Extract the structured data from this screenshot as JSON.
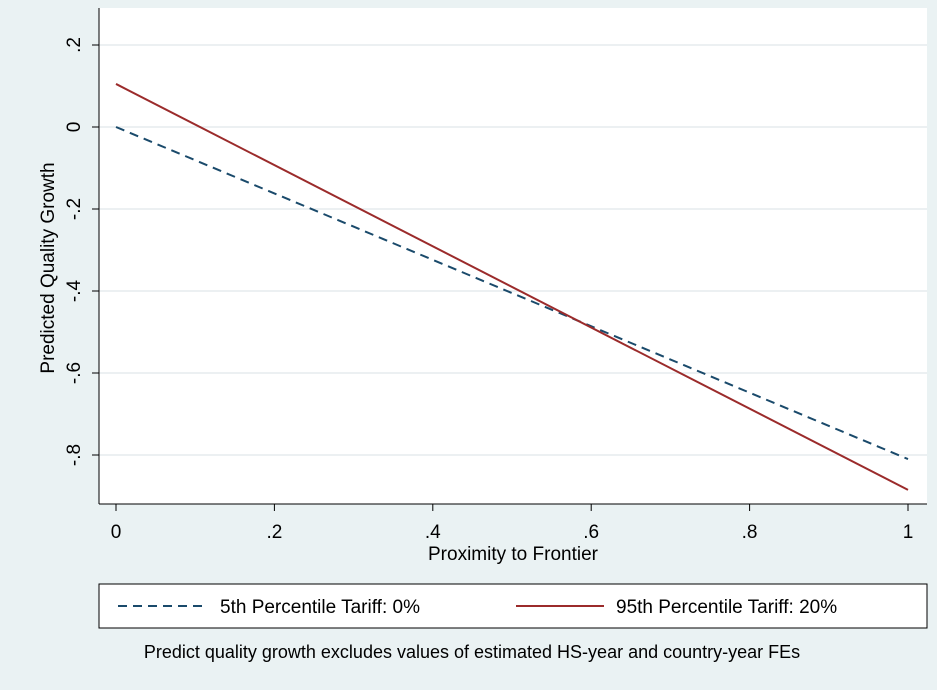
{
  "chart_data": {
    "type": "line",
    "title": "",
    "xlabel": "Proximity to Frontier",
    "ylabel": "Predicted Quality Growth",
    "xlim": [
      0,
      1
    ],
    "ylim": [
      -0.9,
      0.2
    ],
    "x_ticks": [
      0,
      0.2,
      0.4,
      0.6,
      0.8,
      1
    ],
    "x_tick_labels": [
      "0",
      ".2",
      ".4",
      ".6",
      ".8",
      "1"
    ],
    "y_ticks": [
      0.2,
      0,
      -0.2,
      -0.4,
      -0.6,
      -0.8
    ],
    "y_tick_labels": [
      ".2",
      "0",
      "-.2",
      "-.4",
      "-.6",
      "-.8"
    ],
    "grid": true,
    "legend_position": "bottom",
    "series": [
      {
        "name": "5th Percentile Tariff: 0%",
        "style": "dashed",
        "color": "#1a4a6b",
        "x": [
          0,
          1
        ],
        "y": [
          0.0,
          -0.81
        ]
      },
      {
        "name": "95th Percentile Tariff: 20%",
        "style": "solid",
        "color": "#9b2b2b",
        "x": [
          0,
          1
        ],
        "y": [
          0.105,
          -0.885
        ]
      }
    ],
    "note": "Predict quality growth excludes values of estimated HS-year and country-year FEs"
  }
}
